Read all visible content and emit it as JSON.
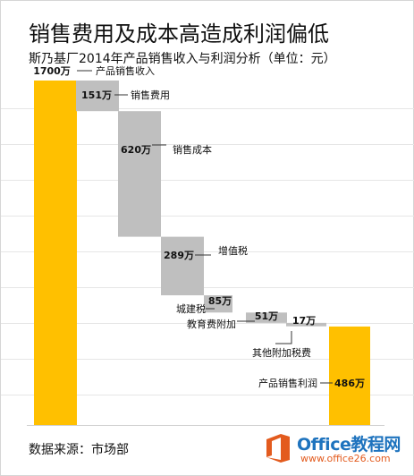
{
  "title": "销售费用及成本高造成利润偏低",
  "subtitle": "斯乃基厂2014年产品销售收入与利润分析（单位：元）",
  "footer": "数据来源：市场部",
  "watermark": {
    "name": "Office教程网",
    "url": "www.office26.com",
    "colors": {
      "blue": "#1e73be",
      "orange": "#e35b1e"
    }
  },
  "colors": {
    "total_bar": "#ffc000",
    "cost_bar": "#bfbfbf",
    "text": "#111111"
  },
  "chart_data": {
    "type": "bar",
    "variant": "waterfall",
    "unit": "万",
    "categories": [
      "产品销售收入",
      "销售费用",
      "销售成本",
      "增值税",
      "城建税",
      "教育费附加",
      "其他附加税费",
      "产品销售利润"
    ],
    "values": [
      1700,
      151,
      620,
      289,
      85,
      51,
      17,
      486
    ],
    "value_labels": [
      "1700万",
      "151万",
      "620万",
      "289万",
      "85万",
      "51万",
      "17万",
      "486万"
    ],
    "kinds": [
      "total",
      "decrease",
      "decrease",
      "decrease",
      "decrease",
      "decrease",
      "decrease",
      "total"
    ],
    "ylim": [
      0,
      1700
    ],
    "grid": true,
    "legend": "none"
  }
}
